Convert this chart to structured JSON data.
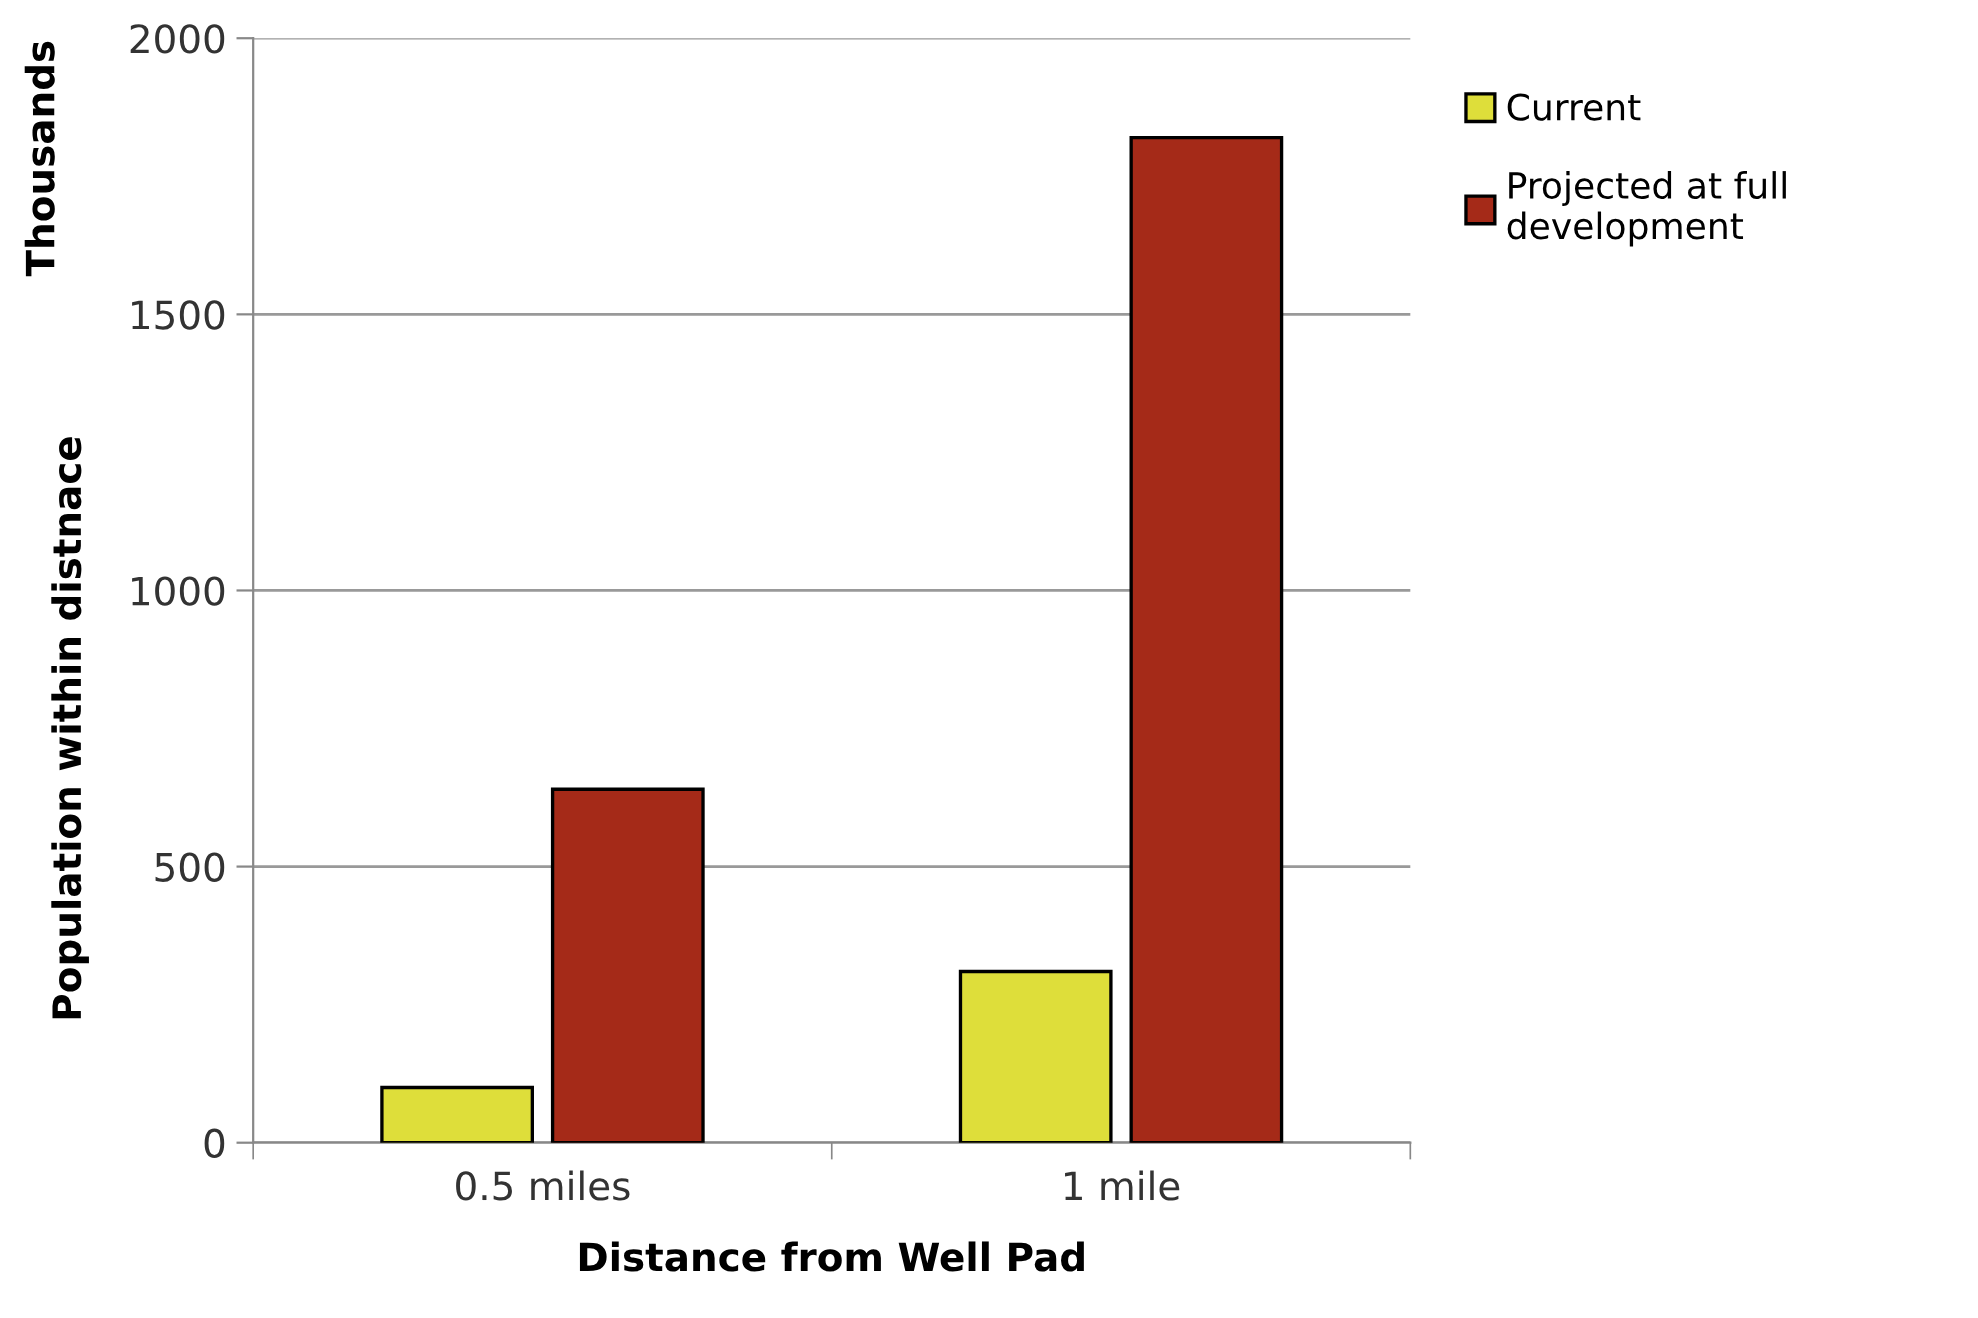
{
  "chart_data": {
    "type": "bar",
    "xlabel": "Distance from Well Pad",
    "ylabel": "Population within distnace",
    "annotations": [
      "Thousands"
    ],
    "categories": [
      "0.5 miles",
      "1 mile"
    ],
    "series": [
      {
        "name": "Current",
        "color": "#dede3a",
        "values": [
          100,
          310
        ]
      },
      {
        "name": "Projected at full development",
        "color": "#a52a18",
        "values": [
          640,
          1820
        ]
      }
    ],
    "ylim": [
      0,
      2000
    ],
    "yticks": [
      0,
      500,
      1000,
      1500,
      2000
    ],
    "grid": "y",
    "legend": "right"
  }
}
